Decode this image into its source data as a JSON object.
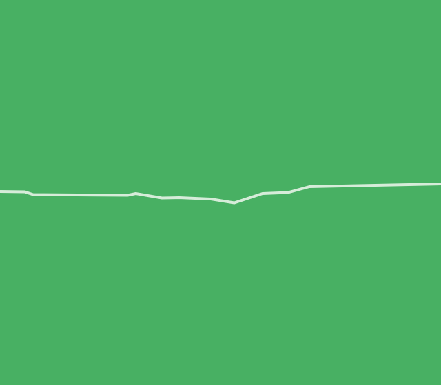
{
  "map": {
    "colors": {
      "land": "#48b063",
      "road": "#d6ecd9"
    },
    "features": [
      {
        "kind": "road",
        "icon": "road-line"
      }
    ]
  }
}
